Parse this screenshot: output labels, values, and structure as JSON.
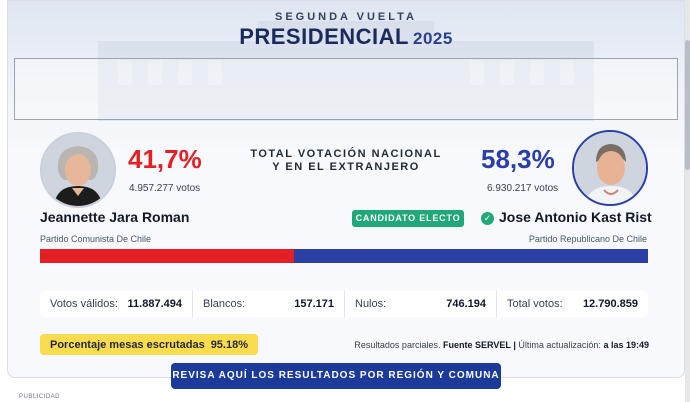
{
  "header": {
    "kicker": "SEGUNDA VUELTA",
    "title": "PRESIDENCIAL",
    "year": "2025"
  },
  "center_label_line1": "TOTAL VOTACIÓN NACIONAL",
  "center_label_line2": "Y EN EL EXTRANJERO",
  "candidates": [
    {
      "name": "Jeannette Jara Roman",
      "party": "Partido Comunista De Chile",
      "percent": "41,7%",
      "votes": "4.957.277 votos",
      "share": 0.417,
      "color": "#e41f26"
    },
    {
      "name": "Jose Antonio Kast Rist",
      "party": "Partido Republicano De Chile",
      "percent": "58,3%",
      "votes": "6.930.217 votos",
      "share": 0.583,
      "color": "#2b3fa6",
      "badge": "CANDIDATO ELECTO"
    }
  ],
  "stats": [
    {
      "label": "Votos válidos:",
      "value": "11.887.494"
    },
    {
      "label": "Blancos:",
      "value": "157.171"
    },
    {
      "label": "Nulos:",
      "value": "746.194"
    },
    {
      "label": "Total votos:",
      "value": "12.790.859"
    }
  ],
  "scrutiny": {
    "label": "Porcentaje mesas escrutadas",
    "value": "95.18%"
  },
  "partial": {
    "prefix": "Resultados parciales.",
    "source": "Fuente SERVEL",
    "sep": "|",
    "update": "Última actualización:",
    "time": "a las 19:49"
  },
  "cta_label": "REVISA AQUÍ LOS RESULTADOS POR REGIÓN Y COMUNA",
  "footer_label": "PUBLICIDAD"
}
